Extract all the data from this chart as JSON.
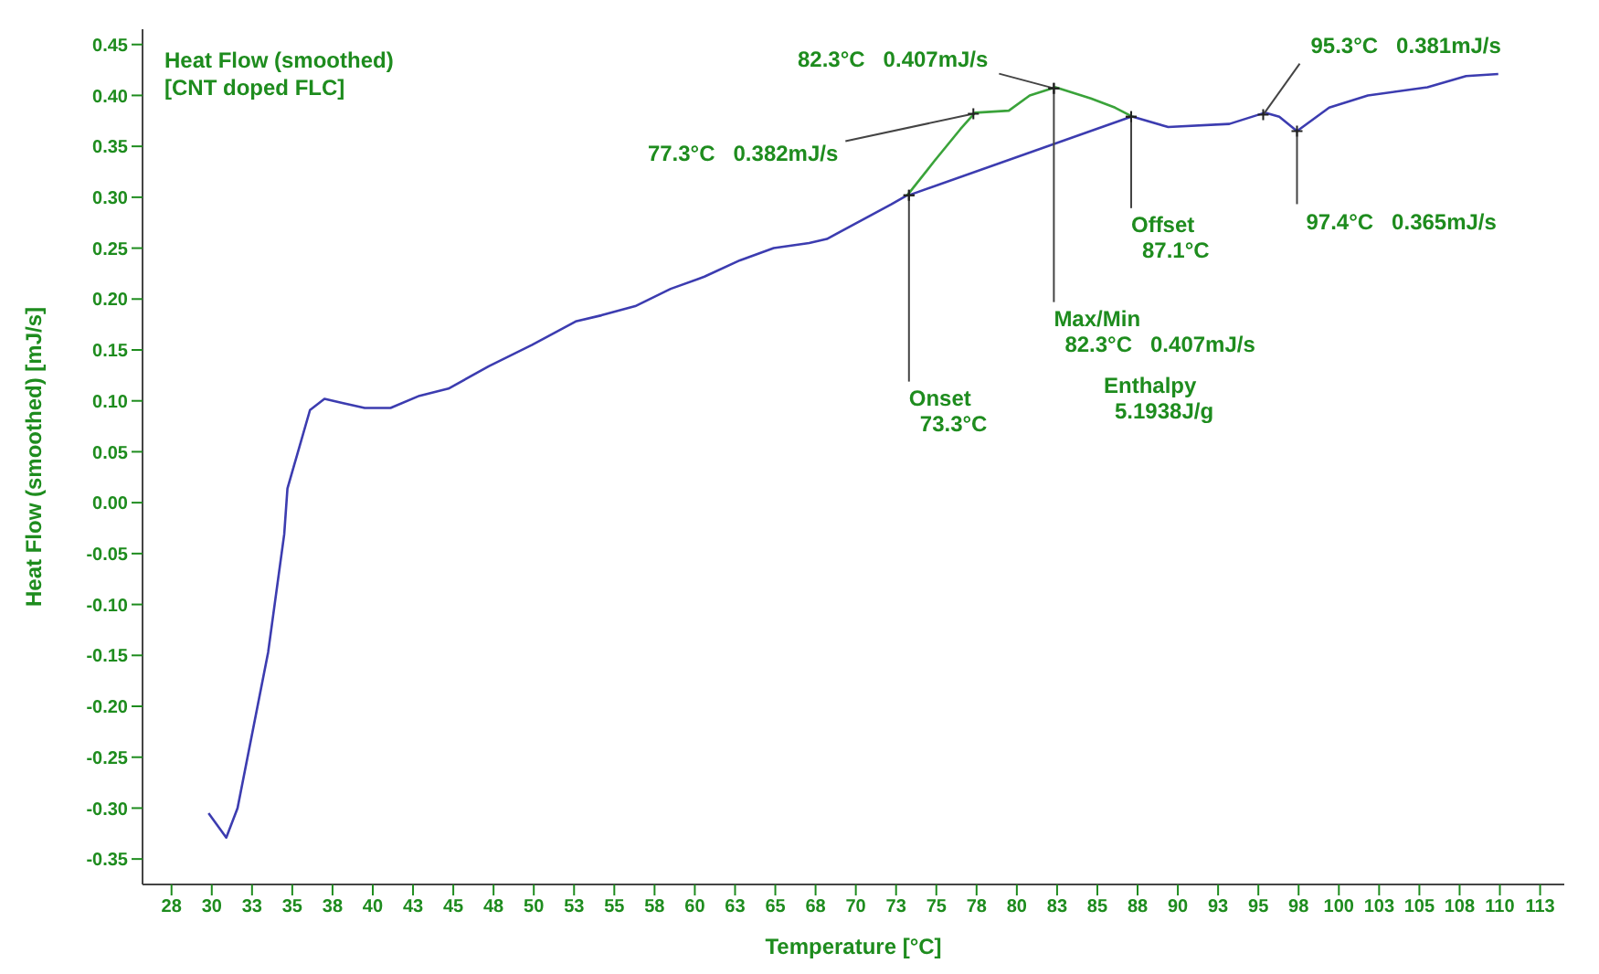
{
  "chart_data": {
    "type": "line",
    "title": "Heat Flow (smoothed)",
    "subtitle": "[CNT doped FLC]",
    "xlabel": "Temperature  [°C]",
    "ylabel": "Heat Flow (smoothed)  [mJ/s]",
    "xlim": [
      25.7,
      114
    ],
    "ylim": [
      -0.375,
      0.465
    ],
    "xticks": [
      {
        "value": 27.5,
        "label": "28"
      },
      30,
      {
        "value": 32.5,
        "label": "33"
      },
      35,
      {
        "value": 37.5,
        "label": "38"
      },
      40,
      {
        "value": 42.5,
        "label": "43"
      },
      45,
      {
        "value": 47.5,
        "label": "48"
      },
      50,
      {
        "value": 52.5,
        "label": "53"
      },
      55,
      {
        "value": 57.5,
        "label": "58"
      },
      60,
      {
        "value": 62.5,
        "label": "63"
      },
      65,
      {
        "value": 67.5,
        "label": "68"
      },
      70,
      {
        "value": 72.5,
        "label": "73"
      },
      75,
      {
        "value": 77.5,
        "label": "78"
      },
      80,
      {
        "value": 82.5,
        "label": "83"
      },
      85,
      {
        "value": 87.5,
        "label": "88"
      },
      90,
      {
        "value": 92.5,
        "label": "93"
      },
      95,
      {
        "value": 97.5,
        "label": "98"
      },
      100,
      {
        "value": 102.5,
        "label": "103"
      },
      105,
      {
        "value": 107.5,
        "label": "108"
      },
      110,
      {
        "value": 112.5,
        "label": "113"
      }
    ],
    "yticks": [
      {
        "value": -0.35,
        "label": "-0.35"
      },
      {
        "value": -0.3,
        "label": "-0.30"
      },
      -0.25,
      {
        "value": -0.2,
        "label": "-0.20"
      },
      -0.15,
      {
        "value": -0.1,
        "label": "-0.10"
      },
      -0.05,
      {
        "value": 0,
        "label": "0.00"
      },
      0.05,
      {
        "value": 0.1,
        "label": "0.10"
      },
      0.15,
      {
        "value": 0.2,
        "label": "0.20"
      },
      0.25,
      {
        "value": 0.3,
        "label": "0.30"
      },
      0.35,
      {
        "value": 0.4,
        "label": "0.40"
      },
      0.45
    ],
    "line_style": "solid",
    "series": [
      {
        "color": "#3c3cb0",
        "x": [
          29.8,
          30.9,
          31.6,
          33.5,
          34.5,
          34.7,
          35.3,
          36.1,
          37.0,
          38.1,
          39.5,
          41.1,
          42.9,
          44.7,
          47.2,
          49.9,
          52.6,
          54.2,
          56.3,
          58.5,
          60.6,
          62.8,
          64.9,
          67.1,
          68.2,
          72.2,
          73.2
        ],
        "values": [
          -0.305,
          -0.329,
          -0.3,
          -0.147,
          -0.031,
          0.014,
          0.047,
          0.091,
          0.102,
          0.098,
          0.093,
          0.093,
          0.105,
          0.112,
          0.134,
          0.155,
          0.178,
          0.184,
          0.193,
          0.21,
          0.222,
          0.238,
          0.25,
          0.255,
          0.259,
          0.293,
          0.302
        ]
      },
      {
        "color": "#3aa33a",
        "x": [
          73.2,
          74.9,
          76.5,
          77.4,
          79.5,
          80.8,
          82.4,
          84.6,
          86.1,
          87.2
        ],
        "values": [
          0.302,
          0.336,
          0.367,
          0.383,
          0.385,
          0.4,
          0.408,
          0.397,
          0.388,
          0.379
        ]
      },
      {
        "color": "#3c3cb0",
        "x": [
          87.2,
          89.4,
          93.2,
          95.4,
          96.3,
          97.4,
          99.4,
          101.8,
          105.5,
          107.9,
          109.9
        ],
        "values": [
          0.379,
          0.369,
          0.372,
          0.383,
          0.379,
          0.365,
          0.388,
          0.4,
          0.408,
          0.419,
          0.421
        ]
      },
      {
        "color": "#3c3cb0",
        "marker": "cross",
        "x": [
          73.3,
          87.1
        ],
        "values": [
          0.302,
          0.379
        ]
      }
    ],
    "annotations": [
      {
        "text": "82.3°C   0.407mJ/s",
        "x": 82.3,
        "y": 0.407
      },
      {
        "text": "77.3°C   0.382mJ/s",
        "x": 77.3,
        "y": 0.382
      },
      {
        "text": "Onset\n73.3°C",
        "x": 73.3,
        "y": 0.302
      },
      {
        "text": "Max/Min\n82.3°C   0.407mJ/s",
        "x": 82.3,
        "y": 0.407
      },
      {
        "text": "Offset\n87.1°C",
        "x": 87.1,
        "y": 0.379
      },
      {
        "text": "95.3°C   0.381mJ/s",
        "x": 95.3,
        "y": 0.381
      },
      {
        "text": "97.4°C   0.365mJ/s",
        "x": 97.4,
        "y": 0.365
      },
      "Enthalpy\n5.1938J/g"
    ]
  }
}
